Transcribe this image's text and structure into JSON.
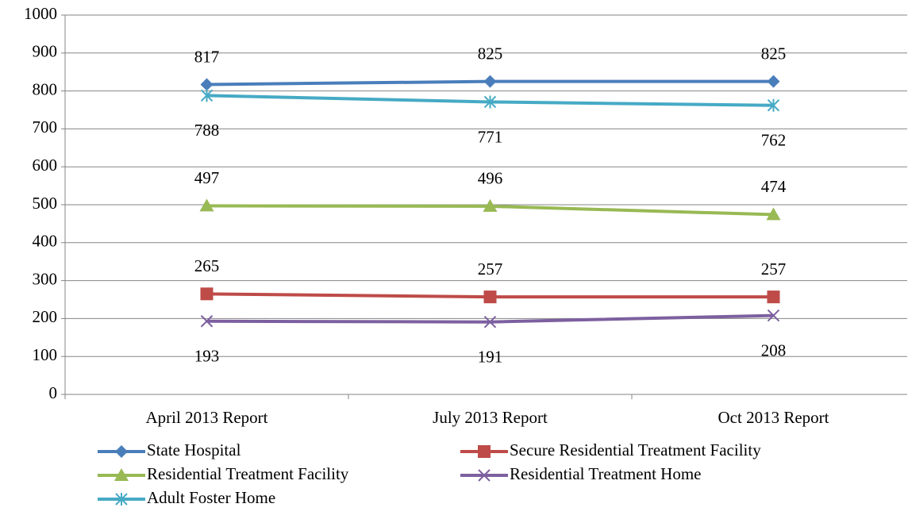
{
  "chart_data": {
    "type": "line",
    "categories": [
      "April 2013 Report",
      "July 2013 Report",
      "Oct 2013 Report"
    ],
    "series": [
      {
        "name": "State Hospital",
        "color": "#4a7ebb",
        "marker": "diamond",
        "label_position": "above",
        "values": [
          817,
          825,
          825
        ]
      },
      {
        "name": "Secure Residential Treatment Facility",
        "color": "#be4b48",
        "marker": "square",
        "label_position": "above",
        "values": [
          265,
          257,
          257
        ]
      },
      {
        "name": "Residential Treatment Facility",
        "color": "#98b954",
        "marker": "triangle",
        "label_position": "above",
        "values": [
          497,
          496,
          474
        ]
      },
      {
        "name": "Residential Treatment Home",
        "color": "#7d60a0",
        "marker": "x",
        "label_position": "below",
        "values": [
          193,
          191,
          208
        ]
      },
      {
        "name": "Adult Foster Home",
        "color": "#46aac5",
        "marker": "asterisk",
        "label_position": "below",
        "values": [
          788,
          771,
          762
        ]
      }
    ],
    "ylim": [
      0,
      1000
    ],
    "yticks": [
      0,
      100,
      200,
      300,
      400,
      500,
      600,
      700,
      800,
      900,
      1000
    ],
    "grid": true,
    "legend": "bottom"
  }
}
